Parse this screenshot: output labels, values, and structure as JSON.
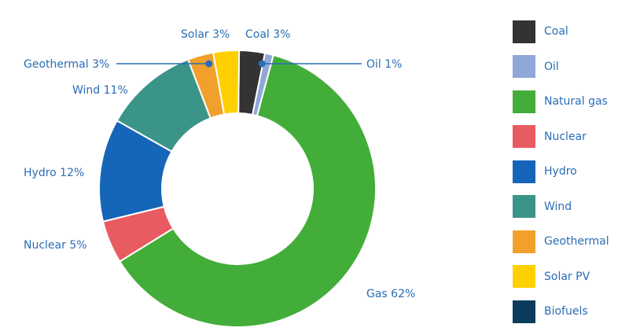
{
  "chart_data": {
    "type": "pie",
    "donut": true,
    "title": "",
    "categories": [
      "Coal",
      "Oil",
      "Natural gas",
      "Nuclear",
      "Hydro",
      "Wind",
      "Geothermal",
      "Solar PV",
      "Biofuels"
    ],
    "values": [
      3,
      1,
      62,
      5,
      12,
      11,
      3,
      3,
      0
    ],
    "colors": [
      "#333333",
      "#8fa8d8",
      "#43ad3a",
      "#e85b61",
      "#1565b8",
      "#3a9488",
      "#f2a02c",
      "#ffd000",
      "#0b3c5d"
    ],
    "slice_labels": [
      "Coal 3%",
      "Oil 1%",
      "Gas 62%",
      "Nuclear 5%",
      "Hydro 12%",
      "Wind 11%",
      "Geothermal 3%",
      "Solar 3%",
      ""
    ],
    "legend_position": "right",
    "label_color": "#2a6db5"
  }
}
